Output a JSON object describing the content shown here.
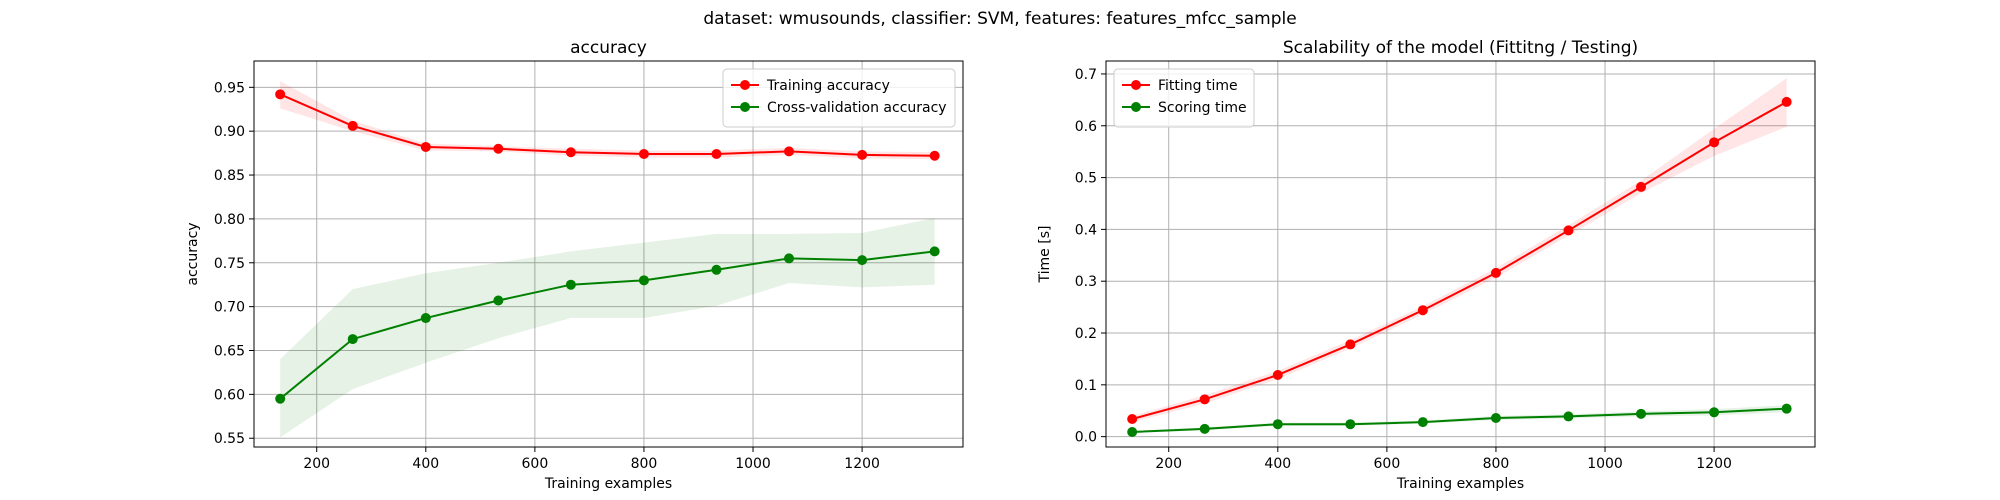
{
  "suptitle": "dataset: wmusounds, classifier: SVM, features: features_mfcc_sample",
  "chart_data": [
    {
      "type": "line",
      "title": "accuracy",
      "xlabel": "Training examples",
      "ylabel": "accuracy",
      "xlim": [
        85,
        1385
      ],
      "ylim": [
        0.54,
        0.98
      ],
      "xticks": [
        200,
        400,
        600,
        800,
        1000,
        1200
      ],
      "yticks": [
        0.55,
        0.6,
        0.65,
        0.7,
        0.75,
        0.8,
        0.85,
        0.9,
        0.95
      ],
      "ytick_decimals": 2,
      "grid": true,
      "legend": "top-right",
      "x": [
        133,
        266,
        400,
        533,
        666,
        800,
        933,
        1066,
        1200,
        1333
      ],
      "series": [
        {
          "name": "Training accuracy",
          "color": "#ff0000",
          "band_color": "rgba(255,0,0,0.1)",
          "values": [
            0.942,
            0.906,
            0.882,
            0.88,
            0.876,
            0.874,
            0.874,
            0.877,
            0.873,
            0.872
          ],
          "upper": [
            0.957,
            0.912,
            0.886,
            0.883,
            0.88,
            0.878,
            0.878,
            0.881,
            0.877,
            0.876
          ],
          "lower": [
            0.926,
            0.9,
            0.878,
            0.877,
            0.872,
            0.87,
            0.87,
            0.873,
            0.869,
            0.868
          ]
        },
        {
          "name": "Cross-validation accuracy",
          "color": "#008000",
          "band_color": "rgba(0,128,0,0.1)",
          "values": [
            0.595,
            0.663,
            0.687,
            0.707,
            0.725,
            0.73,
            0.742,
            0.755,
            0.753,
            0.763
          ],
          "upper": [
            0.64,
            0.72,
            0.738,
            0.75,
            0.763,
            0.773,
            0.783,
            0.783,
            0.784,
            0.801
          ],
          "lower": [
            0.551,
            0.606,
            0.636,
            0.664,
            0.687,
            0.687,
            0.701,
            0.727,
            0.722,
            0.725
          ]
        }
      ]
    },
    {
      "type": "line",
      "title": "Scalability of the model (Fittitng / Testing)",
      "xlabel": "Training examples",
      "ylabel": "Time [s]",
      "xlim": [
        85,
        1385
      ],
      "ylim": [
        -0.02,
        0.725
      ],
      "xticks": [
        200,
        400,
        600,
        800,
        1000,
        1200
      ],
      "yticks": [
        0.0,
        0.1,
        0.2,
        0.3,
        0.4,
        0.5,
        0.6,
        0.7
      ],
      "ytick_decimals": 1,
      "grid": true,
      "legend": "top-left",
      "x": [
        133,
        266,
        400,
        533,
        666,
        800,
        933,
        1066,
        1200,
        1333
      ],
      "series": [
        {
          "name": "Fitting time",
          "color": "#ff0000",
          "band_color": "rgba(255,0,0,0.1)",
          "values": [
            0.034,
            0.072,
            0.119,
            0.178,
            0.244,
            0.316,
            0.398,
            0.482,
            0.568,
            0.646
          ],
          "upper": [
            0.04,
            0.08,
            0.127,
            0.186,
            0.252,
            0.325,
            0.408,
            0.494,
            0.594,
            0.692
          ],
          "lower": [
            0.028,
            0.064,
            0.111,
            0.17,
            0.236,
            0.307,
            0.388,
            0.47,
            0.542,
            0.598
          ]
        },
        {
          "name": "Scoring time",
          "color": "#008000",
          "band_color": "rgba(0,128,0,0.1)",
          "values": [
            0.009,
            0.015,
            0.024,
            0.024,
            0.028,
            0.036,
            0.039,
            0.044,
            0.047,
            0.054
          ],
          "upper": [
            0.011,
            0.018,
            0.027,
            0.027,
            0.031,
            0.04,
            0.043,
            0.049,
            0.053,
            0.061
          ],
          "lower": [
            0.007,
            0.012,
            0.021,
            0.021,
            0.025,
            0.032,
            0.035,
            0.039,
            0.041,
            0.047
          ]
        }
      ]
    }
  ]
}
